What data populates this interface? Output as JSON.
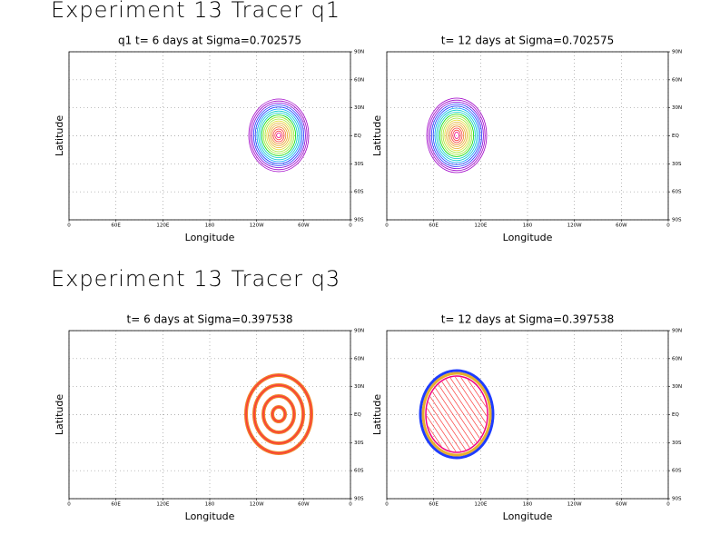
{
  "headings": [
    "Experiment 13 Tracer q1",
    "Experiment 13 Tracer q3"
  ],
  "chart_data": [
    {
      "type": "contour",
      "title": "q1 t= 6 days at Sigma=0.702575",
      "x_label": "Longitude",
      "y_label": "Latitude",
      "xlim": [
        0,
        360
      ],
      "xticks": [
        0,
        {
          "value": 60,
          "label": "60E"
        },
        {
          "value": 120,
          "label": "120E"
        },
        180,
        {
          "value": 240,
          "label": "120W"
        },
        {
          "value": 300,
          "label": "60W"
        },
        {
          "value": 360,
          "label": "0"
        }
      ],
      "ylim": [
        -90,
        90
      ],
      "yticks": [
        {
          "value": -90,
          "label": "90S"
        },
        {
          "value": -60,
          "label": "60S"
        },
        {
          "value": -30,
          "label": "30S"
        },
        {
          "value": 0,
          "label": "EQ"
        },
        {
          "value": 30,
          "label": "30N"
        },
        {
          "value": 60,
          "label": "60N"
        },
        {
          "value": 90,
          "label": "90N"
        }
      ],
      "grid": true
    },
    {
      "type": "contour",
      "title": "t= 12 days at Sigma=0.702575",
      "x_label": "Longitude",
      "y_label": "Latitude",
      "xlim": [
        0,
        360
      ],
      "xticks": [
        0,
        {
          "value": 60,
          "label": "60E"
        },
        {
          "value": 120,
          "label": "120E"
        },
        180,
        {
          "value": 240,
          "label": "120W"
        },
        {
          "value": 300,
          "label": "60W"
        },
        {
          "value": 360,
          "label": "0"
        }
      ],
      "ylim": [
        -90,
        90
      ],
      "yticks": [
        {
          "value": -90,
          "label": "90S"
        },
        {
          "value": -60,
          "label": "60S"
        },
        {
          "value": -30,
          "label": "30S"
        },
        {
          "value": 0,
          "label": "EQ"
        },
        {
          "value": 30,
          "label": "30N"
        },
        {
          "value": 60,
          "label": "60N"
        },
        {
          "value": 90,
          "label": "90N"
        }
      ],
      "grid": true
    },
    {
      "type": "contour",
      "title": "t= 6 days at Sigma=0.397538",
      "x_label": "Longitude",
      "y_label": "Latitude",
      "xlim": [
        0,
        360
      ],
      "xticks": [
        0,
        {
          "value": 60,
          "label": "60E"
        },
        {
          "value": 120,
          "label": "120E"
        },
        180,
        {
          "value": 240,
          "label": "120W"
        },
        {
          "value": 300,
          "label": "60W"
        },
        {
          "value": 360,
          "label": "0"
        }
      ],
      "ylim": [
        -90,
        90
      ],
      "yticks": [
        {
          "value": -90,
          "label": "90S"
        },
        {
          "value": -60,
          "label": "60S"
        },
        {
          "value": -30,
          "label": "30S"
        },
        {
          "value": 0,
          "label": "EQ"
        },
        {
          "value": 30,
          "label": "30N"
        },
        {
          "value": 60,
          "label": "60N"
        },
        {
          "value": 90,
          "label": "90N"
        }
      ],
      "grid": true
    },
    {
      "type": "contour",
      "title": "t= 12 days at Sigma=0.397538",
      "x_label": "Longitude",
      "y_label": "Latitude",
      "xlim": [
        0,
        360
      ],
      "xticks": [
        0,
        {
          "value": 60,
          "label": "60E"
        },
        {
          "value": 120,
          "label": "120E"
        },
        180,
        {
          "value": 240,
          "label": "120W"
        },
        {
          "value": 300,
          "label": "60W"
        },
        {
          "value": 360,
          "label": "0"
        }
      ],
      "ylim": [
        -90,
        90
      ],
      "yticks": [
        {
          "value": -90,
          "label": "90S"
        },
        {
          "value": -60,
          "label": "60S"
        },
        {
          "value": -30,
          "label": "30S"
        },
        {
          "value": 0,
          "label": "EQ"
        },
        {
          "value": 30,
          "label": "30N"
        },
        {
          "value": 60,
          "label": "60N"
        },
        {
          "value": 90,
          "label": "90N"
        }
      ],
      "grid": true
    }
  ]
}
